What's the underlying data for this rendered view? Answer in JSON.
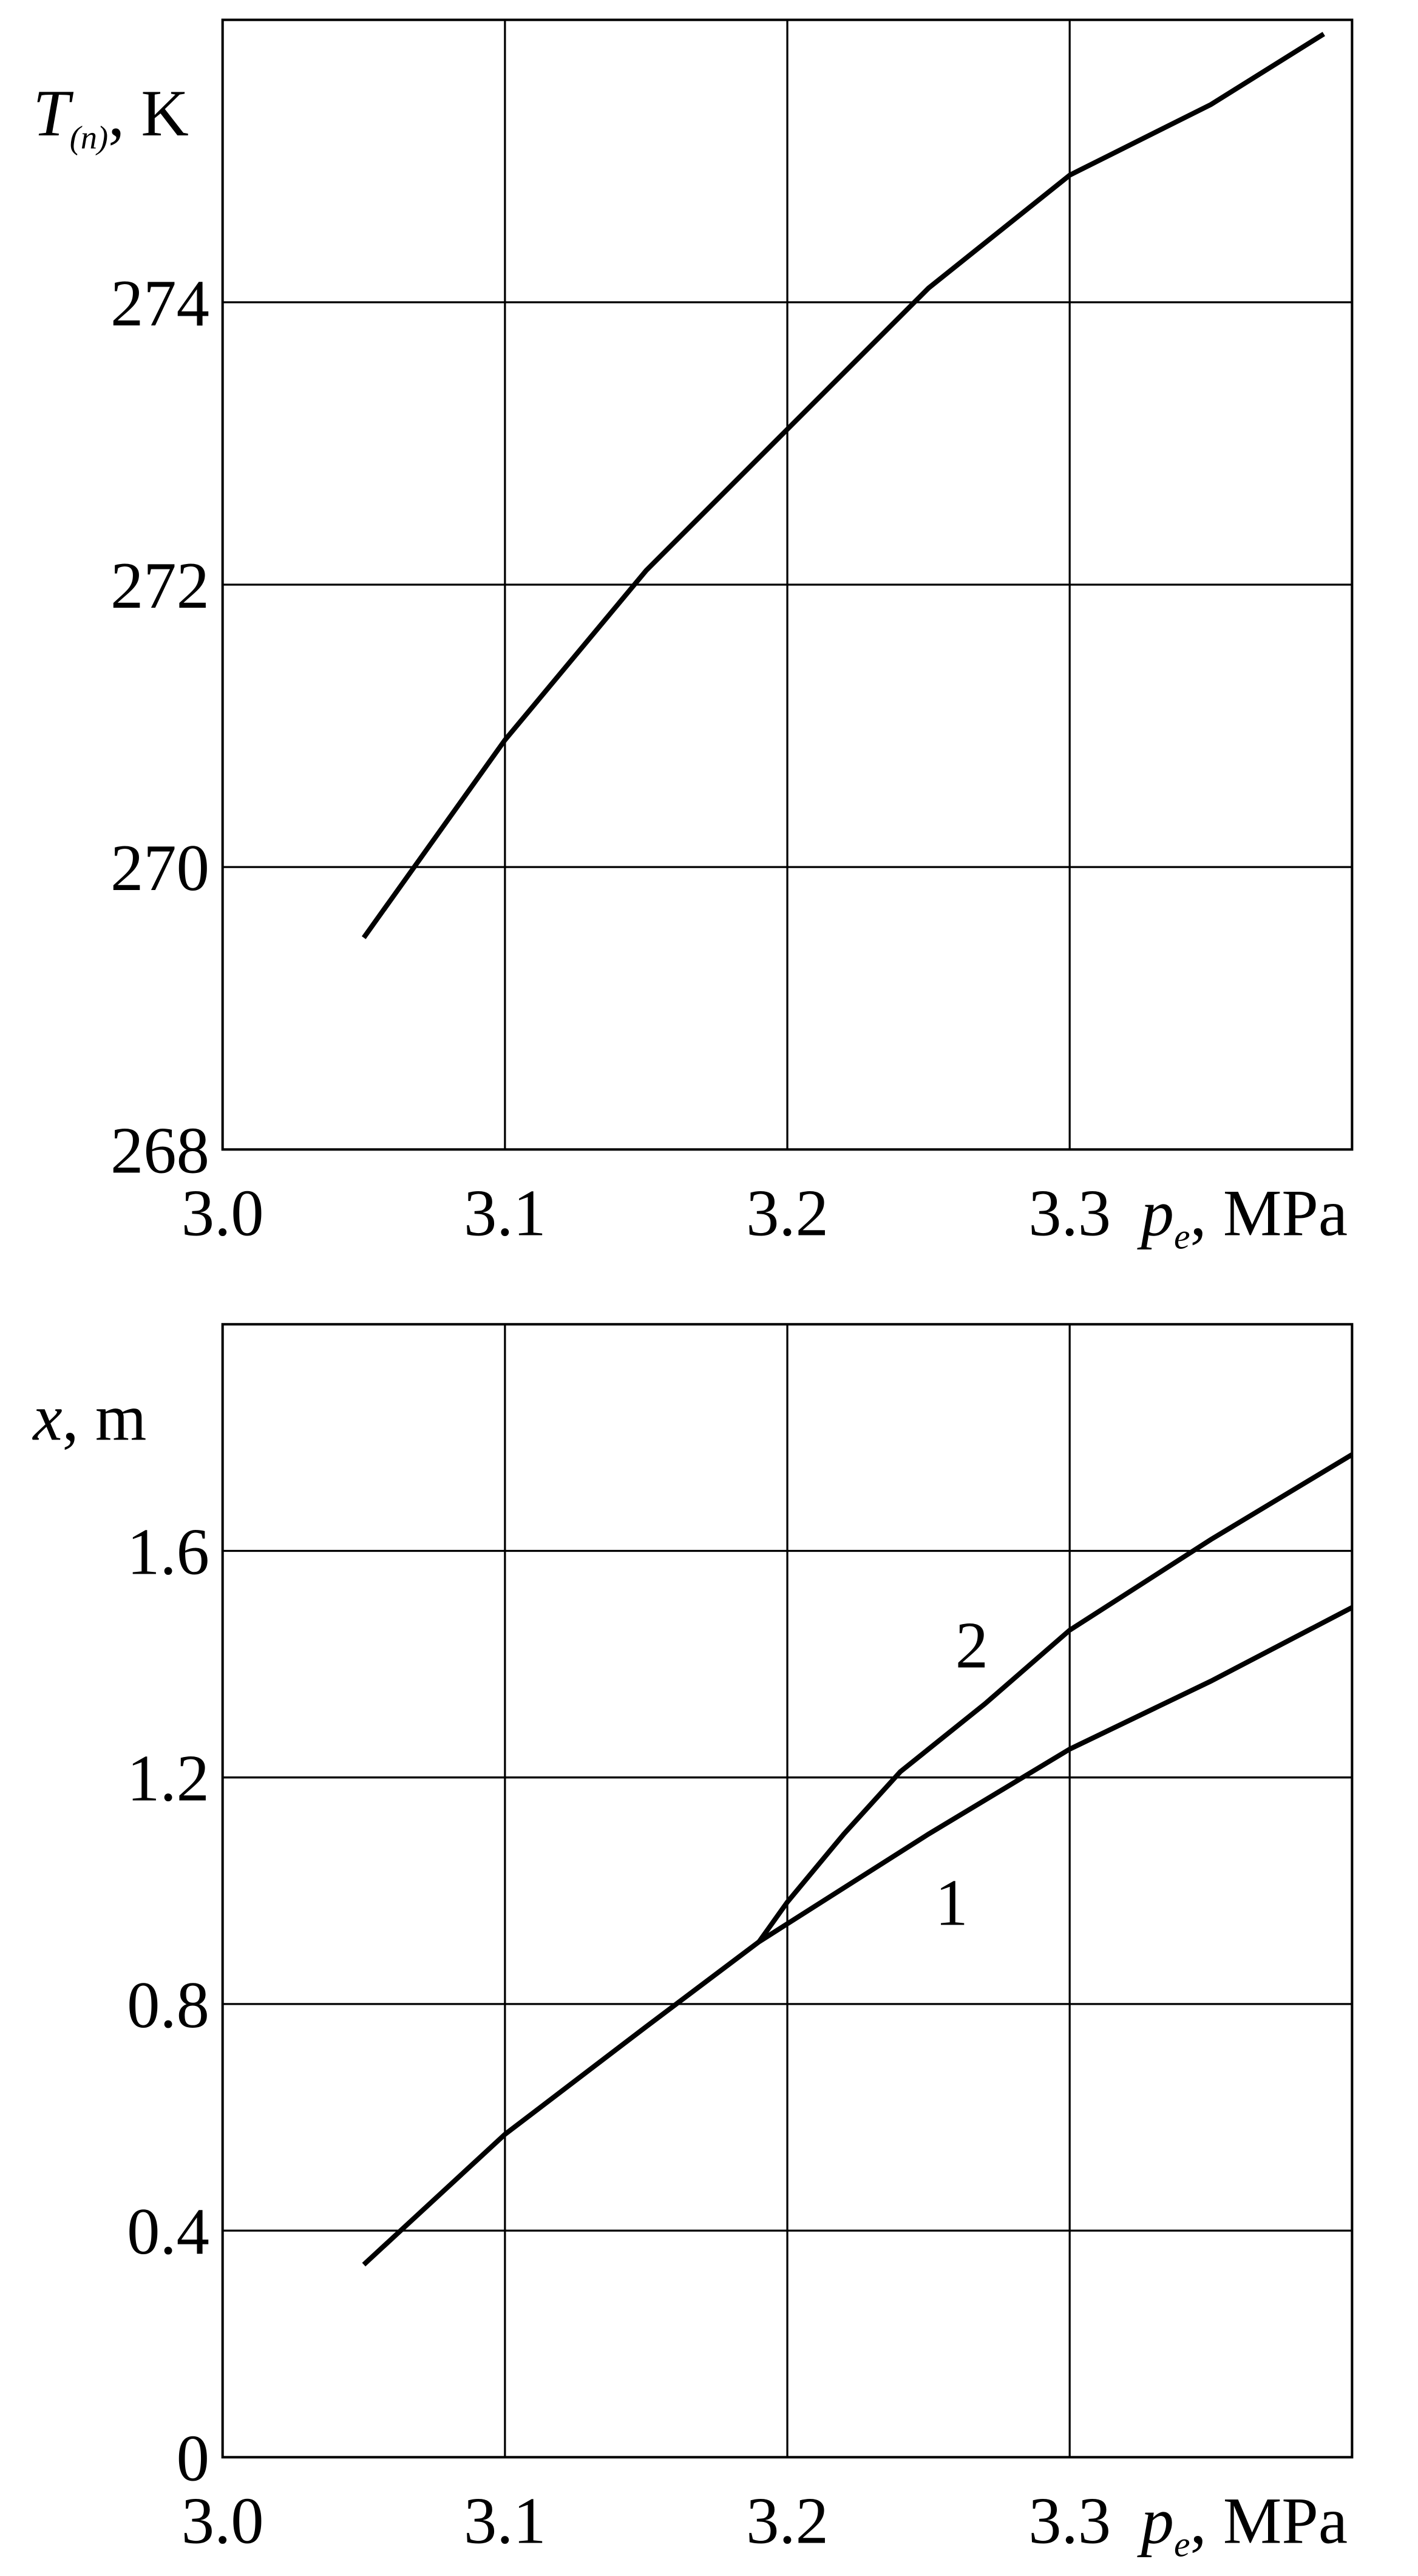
{
  "chart_data": [
    {
      "type": "line",
      "x_label": {
        "symbol": "p",
        "subscript": "e",
        "unit": ", MPa"
      },
      "y_label": {
        "symbol": "T",
        "subscript": "(n)",
        "unit": ", K"
      },
      "xlim": [
        3.0,
        3.4
      ],
      "ylim": [
        268,
        276
      ],
      "xticks": [
        {
          "value": 3,
          "label": "3.0"
        },
        3.1,
        3.2,
        3.3
      ],
      "yticks": [
        268,
        270,
        272,
        274
      ],
      "grid": true,
      "series": [
        {
          "color": "#000000",
          "x": [
            3.05,
            3.1,
            3.15,
            3.2,
            3.25,
            3.3,
            3.35,
            3.39
          ],
          "values": [
            269.5,
            270.9,
            272.1,
            273.1,
            274.1,
            274.9,
            275.4,
            275.9
          ]
        }
      ]
    },
    {
      "type": "line",
      "x_label": {
        "symbol": "p",
        "subscript": "e",
        "unit": ", MPa"
      },
      "y_label": {
        "symbol": "x",
        "unit": ", m"
      },
      "xlim": [
        3.0,
        3.4
      ],
      "ylim": [
        0,
        2.0
      ],
      "xticks": [
        {
          "value": 3,
          "label": "3.0"
        },
        3.1,
        3.2,
        3.3
      ],
      "yticks": [
        0,
        0.4,
        0.8,
        1.2,
        1.6
      ],
      "grid": true,
      "series": [
        {
          "name": "1",
          "color": "#000000",
          "x": [
            3.05,
            3.1,
            3.15,
            3.19,
            3.25,
            3.3,
            3.35,
            3.4
          ],
          "values": [
            0.34,
            0.57,
            0.76,
            0.91,
            1.1,
            1.25,
            1.37,
            1.5
          ]
        },
        {
          "name": "2",
          "color": "#000000",
          "x": [
            3.19,
            3.2,
            3.22,
            3.24,
            3.27,
            3.3,
            3.35,
            3.4
          ],
          "values": [
            0.91,
            0.98,
            1.1,
            1.21,
            1.33,
            1.46,
            1.62,
            1.77
          ]
        }
      ]
    }
  ]
}
